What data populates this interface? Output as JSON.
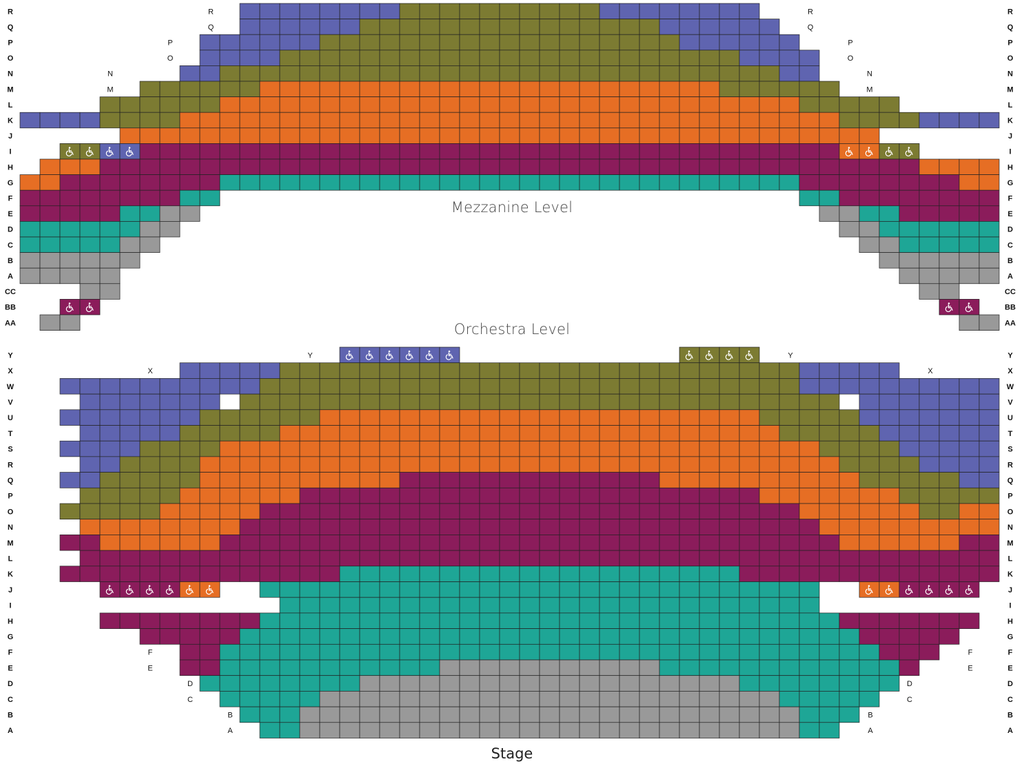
{
  "colors": {
    "B": "#5f64b0",
    "O": "#7c7b32",
    "R": "#e66e24",
    "P": "#8b1c5b",
    "T": "#1ea696",
    "G": "#999999"
  },
  "wheelchair_icon": "wheelchair-icon",
  "mezzanine": {
    "title": "Mezzanine Level",
    "rows": [
      {
        "label": "R",
        "inner_left": "R",
        "inner_right": "R",
        "segments": [
          [
            12,
            19,
            "B"
          ],
          [
            20,
            29,
            "O"
          ],
          [
            30,
            37,
            "B"
          ]
        ]
      },
      {
        "label": "Q",
        "inner_left": "Q",
        "inner_right": "Q",
        "segments": [
          [
            12,
            17,
            "B"
          ],
          [
            18,
            32,
            "O"
          ],
          [
            33,
            38,
            "B"
          ]
        ]
      },
      {
        "label": "P",
        "inner_left": "P",
        "inner_right": "P",
        "segments": [
          [
            10,
            15,
            "B"
          ],
          [
            16,
            33,
            "O"
          ],
          [
            34,
            39,
            "B"
          ]
        ]
      },
      {
        "label": "O",
        "inner_left": "O",
        "inner_right": "O",
        "segments": [
          [
            10,
            13,
            "B"
          ],
          [
            14,
            36,
            "O"
          ],
          [
            37,
            40,
            "B"
          ]
        ]
      },
      {
        "label": "N",
        "inner_left": "N",
        "inner_right": "N",
        "segments": [
          [
            9,
            10,
            "B"
          ],
          [
            11,
            38,
            "O"
          ],
          [
            39,
            40,
            "B"
          ]
        ]
      },
      {
        "label": "M",
        "inner_left": "M",
        "inner_right": "M",
        "segments": [
          [
            7,
            12,
            "O"
          ],
          [
            13,
            35,
            "R"
          ],
          [
            36,
            41,
            "O"
          ]
        ]
      },
      {
        "label": "L",
        "segments": [
          [
            5,
            10,
            "O"
          ],
          [
            11,
            39,
            "R"
          ],
          [
            40,
            44,
            "O"
          ]
        ]
      },
      {
        "label": "K",
        "segments": [
          [
            1,
            4,
            "B"
          ],
          [
            5,
            8,
            "O"
          ],
          [
            9,
            41,
            "R"
          ],
          [
            42,
            45,
            "O"
          ],
          [
            46,
            49,
            "B"
          ]
        ]
      },
      {
        "label": "J",
        "segments": [
          [
            6,
            43,
            "R"
          ]
        ]
      },
      {
        "label": "I",
        "segments": [
          [
            3,
            4,
            "O",
            "wc"
          ],
          [
            5,
            6,
            "B",
            "wc"
          ],
          [
            7,
            41,
            "P"
          ],
          [
            42,
            42,
            "R",
            "wc"
          ],
          [
            43,
            43,
            "R",
            "wc"
          ],
          [
            44,
            45,
            "O",
            "wc"
          ]
        ]
      },
      {
        "label": "H",
        "segments": [
          [
            2,
            4,
            "R"
          ],
          [
            5,
            45,
            "P"
          ],
          [
            46,
            49,
            "R"
          ]
        ]
      },
      {
        "label": "G",
        "segments": [
          [
            1,
            2,
            "R"
          ],
          [
            3,
            10,
            "P"
          ],
          [
            11,
            39,
            "T"
          ],
          [
            40,
            47,
            "P"
          ],
          [
            48,
            49,
            "R"
          ]
        ]
      },
      {
        "label": "F",
        "segments": [
          [
            1,
            8,
            "P"
          ],
          [
            9,
            10,
            "T"
          ],
          [
            40,
            41,
            "T"
          ],
          [
            42,
            49,
            "P"
          ]
        ]
      },
      {
        "label": "E",
        "segments": [
          [
            1,
            5,
            "P"
          ],
          [
            6,
            7,
            "T"
          ],
          [
            8,
            9,
            "G"
          ],
          [
            41,
            42,
            "G"
          ],
          [
            43,
            44,
            "T"
          ],
          [
            45,
            49,
            "P"
          ]
        ]
      },
      {
        "label": "D",
        "segments": [
          [
            1,
            6,
            "T"
          ],
          [
            7,
            8,
            "G"
          ],
          [
            42,
            43,
            "G"
          ],
          [
            44,
            49,
            "T"
          ]
        ]
      },
      {
        "label": "C",
        "segments": [
          [
            1,
            5,
            "T"
          ],
          [
            6,
            7,
            "G"
          ],
          [
            43,
            44,
            "G"
          ],
          [
            45,
            49,
            "T"
          ]
        ]
      },
      {
        "label": "B",
        "segments": [
          [
            1,
            6,
            "G"
          ],
          [
            44,
            49,
            "G"
          ]
        ]
      },
      {
        "label": "A",
        "segments": [
          [
            1,
            5,
            "G"
          ],
          [
            45,
            49,
            "G"
          ]
        ]
      },
      {
        "label": "CC",
        "segments": [
          [
            4,
            5,
            "G"
          ],
          [
            46,
            47,
            "G"
          ]
        ]
      },
      {
        "label": "BB",
        "segments": [
          [
            3,
            4,
            "P",
            "wc"
          ],
          [
            47,
            48,
            "P",
            "wc"
          ]
        ]
      },
      {
        "label": "AA",
        "segments": [
          [
            2,
            3,
            "G"
          ],
          [
            48,
            49,
            "G"
          ]
        ]
      }
    ]
  },
  "orchestra": {
    "title": "Orchestra Level",
    "rows": [
      {
        "label": "Y",
        "inner_left": "Y",
        "inner_right": "Y",
        "segments": [
          [
            17,
            22,
            "B",
            "wc"
          ],
          [
            34,
            37,
            "O",
            "wc"
          ]
        ]
      },
      {
        "label": "X",
        "inner_left": "X",
        "inner_right": "X",
        "segments": [
          [
            9,
            13,
            "B"
          ],
          [
            14,
            39,
            "O"
          ],
          [
            40,
            44,
            "B"
          ]
        ]
      },
      {
        "label": "W",
        "segments": [
          [
            3,
            12,
            "B"
          ],
          [
            13,
            39,
            "O"
          ],
          [
            40,
            49,
            "B"
          ]
        ]
      },
      {
        "label": "V",
        "segments": [
          [
            4,
            10,
            "B"
          ],
          [
            12,
            41,
            "O"
          ],
          [
            43,
            49,
            "B"
          ]
        ]
      },
      {
        "label": "U",
        "segments": [
          [
            3,
            9,
            "B"
          ],
          [
            10,
            15,
            "O"
          ],
          [
            16,
            37,
            "R"
          ],
          [
            38,
            42,
            "O"
          ],
          [
            43,
            49,
            "B"
          ]
        ]
      },
      {
        "label": "T",
        "segments": [
          [
            4,
            8,
            "B"
          ],
          [
            9,
            13,
            "O"
          ],
          [
            14,
            38,
            "R"
          ],
          [
            39,
            43,
            "O"
          ],
          [
            44,
            49,
            "B"
          ]
        ]
      },
      {
        "label": "S",
        "segments": [
          [
            3,
            6,
            "B"
          ],
          [
            7,
            10,
            "O"
          ],
          [
            11,
            40,
            "R"
          ],
          [
            41,
            44,
            "O"
          ],
          [
            45,
            49,
            "B"
          ]
        ]
      },
      {
        "label": "R",
        "segments": [
          [
            4,
            5,
            "B"
          ],
          [
            6,
            9,
            "O"
          ],
          [
            10,
            41,
            "R"
          ],
          [
            42,
            45,
            "O"
          ],
          [
            46,
            49,
            "B"
          ]
        ]
      },
      {
        "label": "Q",
        "segments": [
          [
            3,
            4,
            "B"
          ],
          [
            5,
            9,
            "O"
          ],
          [
            10,
            19,
            "R"
          ],
          [
            20,
            32,
            "P"
          ],
          [
            33,
            42,
            "R"
          ],
          [
            43,
            47,
            "O"
          ],
          [
            48,
            49,
            "B"
          ]
        ]
      },
      {
        "label": "P",
        "segments": [
          [
            4,
            8,
            "O"
          ],
          [
            9,
            14,
            "R"
          ],
          [
            15,
            37,
            "P"
          ],
          [
            38,
            44,
            "R"
          ],
          [
            45,
            49,
            "O"
          ]
        ]
      },
      {
        "label": "O",
        "segments": [
          [
            3,
            7,
            "O"
          ],
          [
            8,
            12,
            "R"
          ],
          [
            13,
            39,
            "P"
          ],
          [
            40,
            45,
            "R"
          ],
          [
            46,
            47,
            "O"
          ],
          [
            48,
            49,
            "R"
          ]
        ]
      },
      {
        "label": "N",
        "segments": [
          [
            4,
            11,
            "R"
          ],
          [
            12,
            40,
            "P"
          ],
          [
            41,
            49,
            "R"
          ]
        ]
      },
      {
        "label": "M",
        "segments": [
          [
            3,
            4,
            "P"
          ],
          [
            5,
            10,
            "R"
          ],
          [
            11,
            41,
            "P"
          ],
          [
            42,
            47,
            "R"
          ],
          [
            48,
            49,
            "P"
          ]
        ]
      },
      {
        "label": "L",
        "segments": [
          [
            4,
            49,
            "P"
          ]
        ]
      },
      {
        "label": "K",
        "segments": [
          [
            3,
            16,
            "P"
          ],
          [
            17,
            36,
            "T"
          ],
          [
            37,
            49,
            "P"
          ]
        ]
      },
      {
        "label": "J",
        "segments": [
          [
            5,
            8,
            "P",
            "wc"
          ],
          [
            9,
            10,
            "R",
            "wc"
          ],
          [
            13,
            40,
            "T"
          ],
          [
            43,
            44,
            "R",
            "wc"
          ],
          [
            45,
            48,
            "P",
            "wc"
          ]
        ]
      },
      {
        "label": "I",
        "segments": [
          [
            14,
            40,
            "T"
          ]
        ]
      },
      {
        "label": "H",
        "segments": [
          [
            5,
            12,
            "P"
          ],
          [
            13,
            41,
            "T"
          ],
          [
            42,
            48,
            "P"
          ]
        ]
      },
      {
        "label": "G",
        "segments": [
          [
            7,
            11,
            "P"
          ],
          [
            12,
            42,
            "T"
          ],
          [
            43,
            47,
            "P"
          ]
        ]
      },
      {
        "label": "F",
        "inner_left": "F",
        "inner_right": "F",
        "segments": [
          [
            9,
            10,
            "P"
          ],
          [
            11,
            43,
            "T"
          ],
          [
            44,
            46,
            "P"
          ]
        ]
      },
      {
        "label": "E",
        "inner_left": "E",
        "inner_right": "E",
        "segments": [
          [
            9,
            10,
            "P"
          ],
          [
            11,
            21,
            "T"
          ],
          [
            22,
            32,
            "G"
          ],
          [
            33,
            44,
            "T"
          ],
          [
            45,
            45,
            "P"
          ]
        ]
      },
      {
        "label": "D",
        "inner_left": "D",
        "inner_right": "D",
        "segments": [
          [
            10,
            17,
            "T"
          ],
          [
            18,
            36,
            "G"
          ],
          [
            37,
            44,
            "T"
          ]
        ]
      },
      {
        "label": "C",
        "inner_left": "C",
        "inner_right": "C",
        "segments": [
          [
            11,
            15,
            "T"
          ],
          [
            16,
            38,
            "G"
          ],
          [
            39,
            43,
            "T"
          ]
        ]
      },
      {
        "label": "B",
        "inner_left": "B",
        "inner_right": "B",
        "segments": [
          [
            12,
            14,
            "T"
          ],
          [
            15,
            39,
            "G"
          ],
          [
            40,
            42,
            "T"
          ]
        ]
      },
      {
        "label": "A",
        "inner_left": "A",
        "inner_right": "A",
        "segments": [
          [
            13,
            14,
            "T"
          ],
          [
            15,
            39,
            "G"
          ],
          [
            40,
            41,
            "T"
          ]
        ]
      }
    ]
  },
  "stage": {
    "label": "Stage"
  }
}
